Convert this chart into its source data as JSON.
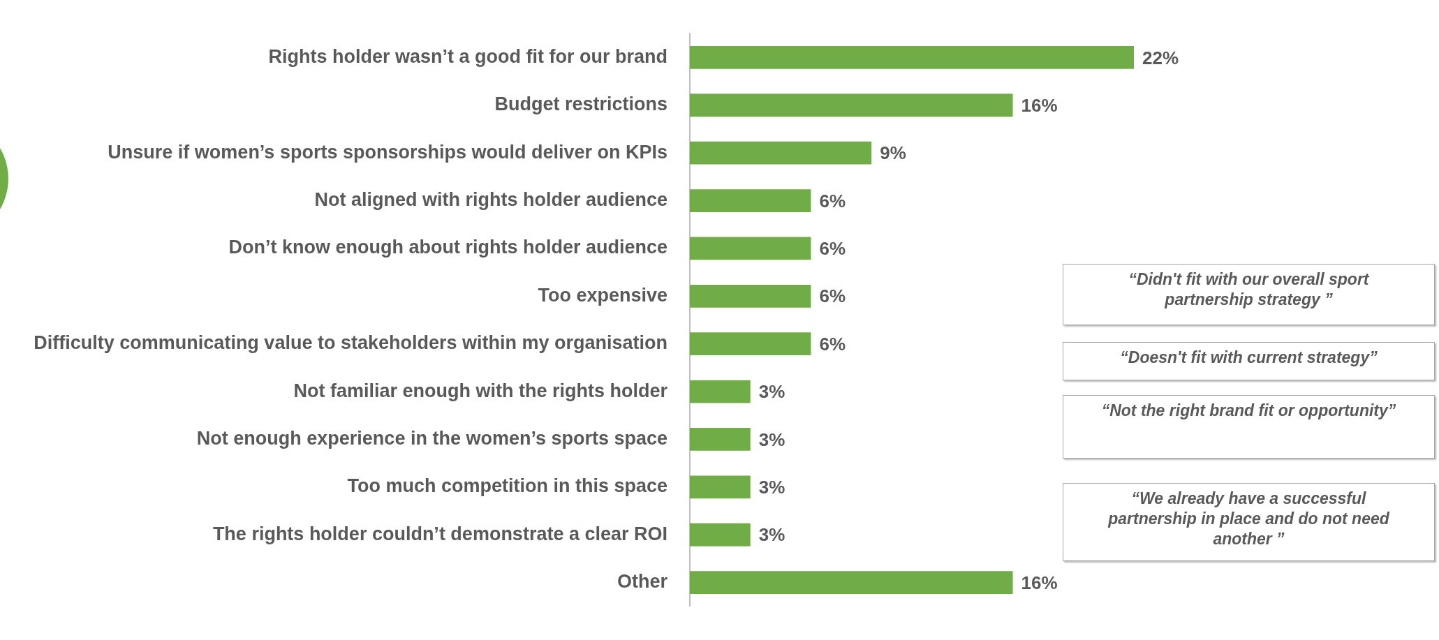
{
  "chart_data": {
    "type": "bar",
    "orientation": "horizontal",
    "categories": [
      "Rights holder wasn’t a good fit for our brand",
      "Budget restrictions",
      "Unsure if women’s sports sponsorships would deliver on KPIs",
      "Not aligned with rights holder audience",
      "Don’t know enough about rights holder audience",
      "Too expensive",
      "Difficulty communicating value to stakeholders within my organisation",
      "Not familiar enough with the rights holder",
      "Not enough experience in the women’s sports space",
      "Too much competition in this space",
      "The rights holder couldn’t demonstrate a clear ROI",
      "Other"
    ],
    "values": [
      22,
      16,
      9,
      6,
      6,
      6,
      6,
      3,
      3,
      3,
      3,
      16
    ],
    "value_labels": [
      "22%",
      "16%",
      "9%",
      "6%",
      "6%",
      "6%",
      "6%",
      "3%",
      "3%",
      "3%",
      "3%",
      "16%"
    ],
    "color": "#70ad47",
    "xlim": [
      0,
      22
    ],
    "tick_labels": "y",
    "legend": false,
    "annotations": [
      "“Didn't fit with our overall sport partnership strategy ”",
      "“Doesn't fit with current strategy”",
      "“Not the right brand fit or opportunity”",
      "“We already have a successful partnership in place and do not need another ”"
    ]
  }
}
